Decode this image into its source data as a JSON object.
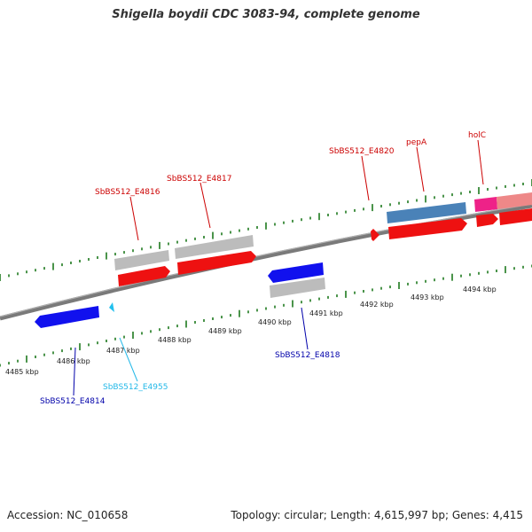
{
  "title": "Shigella boydii CDC 3083-94, complete genome",
  "footer": {
    "accession": "Accession: NC_010658",
    "topology": "Topology: circular; Length: 4,615,997 bp; Genes: 4,415"
  },
  "ticks": [
    "4485 kbp",
    "4486 kbp",
    "4487 kbp",
    "4488 kbp",
    "4489 kbp",
    "4490 kbp",
    "4491 kbp",
    "4492 kbp",
    "4493 kbp",
    "4494 kbp"
  ],
  "colors": {
    "backbone": "#7a7a7a",
    "cds_forward": "#ee1111",
    "cds_reverse": "#1111ee",
    "gene_gray": "#bcbcbc",
    "gene_blue": "#4a82b8",
    "gene_magenta": "#ee2288",
    "gene_pink": "#ee8888",
    "tick_green": "#1e7a1e",
    "pseudo_cyan": "#22c0ee"
  },
  "features": [
    {
      "id": "SbBS512_E4816",
      "label": "SbBS512_E4816",
      "color": "#cc0000"
    },
    {
      "id": "SbBS512_E4817",
      "label": "SbBS512_E4817",
      "color": "#cc0000"
    },
    {
      "id": "SbBS512_E4820",
      "label": "SbBS512_E4820",
      "color": "#cc0000"
    },
    {
      "id": "pepA",
      "label": "pepA",
      "color": "#cc0000"
    },
    {
      "id": "holC",
      "label": "holC",
      "color": "#cc0000"
    },
    {
      "id": "SbBS512_E4818",
      "label": "SbBS512_E4818",
      "color": "#0000aa"
    },
    {
      "id": "SbBS512_E4955",
      "label": "SbBS512_E4955",
      "color": "#22b8e8"
    },
    {
      "id": "SbBS512_E4814",
      "label": "SbBS512_E4814",
      "color": "#0000aa"
    }
  ]
}
